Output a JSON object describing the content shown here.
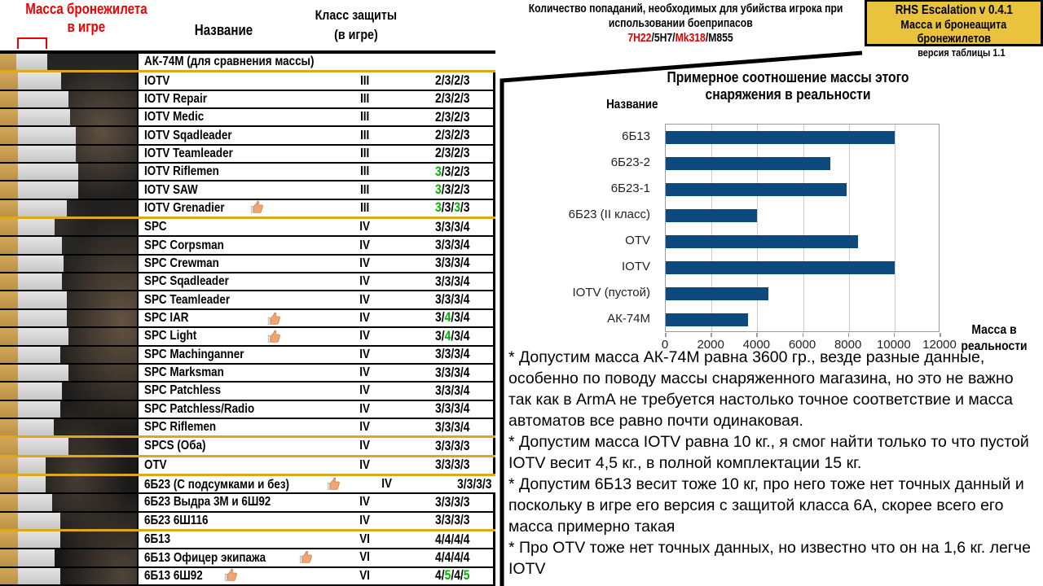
{
  "header": {
    "mass_title_line1": "Масса бронежилета",
    "mass_title_line2": "в игре",
    "name_col": "Название",
    "class_col_line1": "Класс защиты",
    "class_col_line2": "(в игре)",
    "hits_col_line1": "Количество попаданий, необходимых для убийства игрока при",
    "hits_col_line2": "использовании боеприпасов",
    "ammo": [
      {
        "text": "7Н22",
        "color": "#e00000"
      },
      {
        "text": "/5Н7/",
        "color": "#000000"
      },
      {
        "text": "Mk318",
        "color": "#e00000"
      },
      {
        "text": "/М855",
        "color": "#000000"
      }
    ]
  },
  "infobox": {
    "line1": "RHS Escalation v 0.4.1",
    "line2": "Масса и бронеащита",
    "line3": "бронежилетов",
    "version": "версия таблицы 1.1"
  },
  "colors": {
    "accent_red": "#ee0000",
    "green_value": "#00b400",
    "gold_bar": "#c79b4f",
    "gray_bar": "#d4d4d4",
    "group_separator": "#dfa71e",
    "infobox_fill": "#e9c33c",
    "chart_bar": "#0c4a7e"
  },
  "table": {
    "rows": [
      {
        "name": "АК-74М (для сравнения массы)",
        "cls": "",
        "hits": [],
        "green": [],
        "thumb": null,
        "gold": 20,
        "gray": 38,
        "sep": true
      },
      {
        "name": "IOTV",
        "cls": "III",
        "hits": [
          "2",
          "3",
          "2",
          "3"
        ],
        "green": [],
        "thumb": null,
        "gold": 22,
        "gray": 53,
        "sep": false
      },
      {
        "name": "IOTV Repair",
        "cls": "III",
        "hits": [
          "2",
          "3",
          "2",
          "3"
        ],
        "green": [],
        "thumb": null,
        "gold": 22,
        "gray": 62,
        "sep": false
      },
      {
        "name": "IOTV Medic",
        "cls": "III",
        "hits": [
          "2",
          "3",
          "2",
          "3"
        ],
        "green": [],
        "thumb": null,
        "gold": 22,
        "gray": 64,
        "sep": false
      },
      {
        "name": "IOTV Sqadleader",
        "cls": "III",
        "hits": [
          "2",
          "3",
          "2",
          "3"
        ],
        "green": [],
        "thumb": null,
        "gold": 22,
        "gray": 71,
        "sep": false
      },
      {
        "name": "IOTV Teamleader",
        "cls": "III",
        "hits": [
          "2",
          "3",
          "2",
          "3"
        ],
        "green": [],
        "thumb": null,
        "gold": 22,
        "gray": 71,
        "sep": false
      },
      {
        "name": "IOTV Riflemen",
        "cls": "III",
        "hits": [
          "3",
          "3",
          "2",
          "3"
        ],
        "green": [
          0
        ],
        "thumb": null,
        "gold": 22,
        "gray": 74,
        "sep": false
      },
      {
        "name": "IOTV SAW",
        "cls": "III",
        "hits": [
          "3",
          "3",
          "2",
          "3"
        ],
        "green": [
          0
        ],
        "thumb": null,
        "gold": 22,
        "gray": 74,
        "sep": false
      },
      {
        "name": "IOTV Grenadier",
        "cls": "III",
        "hits": [
          "3",
          "3",
          "3",
          "3"
        ],
        "green": [
          0,
          2
        ],
        "thumb": "near",
        "gold": 22,
        "gray": 60,
        "sep": true
      },
      {
        "name": "SPC",
        "cls": "IV",
        "hits": [
          "3",
          "3",
          "3",
          "4"
        ],
        "green": [],
        "thumb": null,
        "gold": 22,
        "gray": 45,
        "sep": false
      },
      {
        "name": "SPC Corpsman",
        "cls": "IV",
        "hits": [
          "3",
          "3",
          "3",
          "4"
        ],
        "green": [],
        "thumb": null,
        "gold": 22,
        "gray": 54,
        "sep": false
      },
      {
        "name": "SPC Crewman",
        "cls": "IV",
        "hits": [
          "3",
          "3",
          "3",
          "4"
        ],
        "green": [],
        "thumb": null,
        "gold": 22,
        "gray": 56,
        "sep": false
      },
      {
        "name": "SPC Sqadleader",
        "cls": "IV",
        "hits": [
          "3",
          "3",
          "3",
          "4"
        ],
        "green": [],
        "thumb": null,
        "gold": 22,
        "gray": 54,
        "sep": false
      },
      {
        "name": "SPC Teamleader",
        "cls": "IV",
        "hits": [
          "3",
          "3",
          "3",
          "4"
        ],
        "green": [],
        "thumb": null,
        "gold": 22,
        "gray": 60,
        "sep": false
      },
      {
        "name": "SPC IAR",
        "cls": "IV",
        "hits": [
          "3",
          "4",
          "3",
          "4"
        ],
        "green": [
          1
        ],
        "thumb": "far",
        "gold": 22,
        "gray": 60,
        "sep": false
      },
      {
        "name": "SPC Light",
        "cls": "IV",
        "hits": [
          "3",
          "4",
          "3",
          "4"
        ],
        "green": [
          1
        ],
        "thumb": "far",
        "gold": 22,
        "gray": 62,
        "sep": false
      },
      {
        "name": "SPC Machinganner",
        "cls": "IV",
        "hits": [
          "3",
          "3",
          "3",
          "4"
        ],
        "green": [],
        "thumb": null,
        "gold": 22,
        "gray": 52,
        "sep": false
      },
      {
        "name": "SPC Marksman",
        "cls": "IV",
        "hits": [
          "3",
          "3",
          "3",
          "4"
        ],
        "green": [],
        "thumb": null,
        "gold": 22,
        "gray": 62,
        "sep": false
      },
      {
        "name": "SPC Patchless",
        "cls": "IV",
        "hits": [
          "3",
          "3",
          "3",
          "4"
        ],
        "green": [],
        "thumb": null,
        "gold": 22,
        "gray": 54,
        "sep": false
      },
      {
        "name": "SPC Patchless/Radio",
        "cls": "IV",
        "hits": [
          "3",
          "3",
          "3",
          "4"
        ],
        "green": [],
        "thumb": null,
        "gold": 22,
        "gray": 52,
        "sep": false
      },
      {
        "name": "SPC Riflemen",
        "cls": "IV",
        "hits": [
          "3",
          "3",
          "3",
          "4"
        ],
        "green": [],
        "thumb": null,
        "gold": 22,
        "gray": 44,
        "sep": true
      },
      {
        "name": "SPCS (Оба)",
        "cls": "IV",
        "hits": [
          "3",
          "3",
          "3",
          "3"
        ],
        "green": [],
        "thumb": null,
        "gold": 22,
        "gray": 62,
        "sep": true
      },
      {
        "name": "OTV",
        "cls": "IV",
        "hits": [
          "3",
          "3",
          "3",
          "3"
        ],
        "green": [],
        "thumb": null,
        "gold": 22,
        "gray": 34,
        "sep": true
      },
      {
        "name": "6Б23 (С подсумками и без)",
        "cls": "IV",
        "hits": [
          "3",
          "3",
          "3",
          "3"
        ],
        "green": [],
        "thumb": "near",
        "gold": 22,
        "gray": 34,
        "sep": false
      },
      {
        "name": "6Б23 Выдра 3М и 6Ш92",
        "cls": "IV",
        "hits": [
          "3",
          "3",
          "3",
          "3"
        ],
        "green": [],
        "thumb": null,
        "gold": 22,
        "gray": 42,
        "sep": false
      },
      {
        "name": "6Б23 6Ш116",
        "cls": "IV",
        "hits": [
          "3",
          "3",
          "3",
          "3"
        ],
        "green": [],
        "thumb": null,
        "gold": 22,
        "gray": 52,
        "sep": true
      },
      {
        "name": "6Б13",
        "cls": "VI",
        "hits": [
          "4",
          "4",
          "4",
          "4"
        ],
        "green": [],
        "thumb": null,
        "gold": 22,
        "gray": 52,
        "sep": false
      },
      {
        "name": "6Б13 Офицер экипажа",
        "cls": "VI",
        "hits": [
          "4",
          "4",
          "4",
          "4"
        ],
        "green": [],
        "thumb": "near",
        "gold": 22,
        "gray": 45,
        "sep": false
      },
      {
        "name": "6Б13 6Ш92",
        "cls": "VI",
        "hits": [
          "4",
          "5",
          "4",
          "5"
        ],
        "green": [
          1,
          3
        ],
        "thumb": "near",
        "gold": 22,
        "gray": 52,
        "sep": false
      }
    ]
  },
  "chart_data": {
    "type": "bar",
    "orientation": "horizontal",
    "title": "Примерное соотношение массы этого снаряжения в реальности",
    "categories_label": "Название",
    "categories": [
      "6Б13",
      "6Б23-2",
      "6Б23-1",
      "6Б23 (II класс)",
      "OTV",
      "IOTV",
      "IOTV (пустой)",
      "АК-74М"
    ],
    "values": [
      10000,
      7200,
      7900,
      4000,
      8400,
      10000,
      4500,
      3600
    ],
    "xlabel": "Масса в реальности",
    "xlim": [
      0,
      12000
    ],
    "xticks": [
      0,
      2000,
      4000,
      6000,
      8000,
      10000,
      12000
    ],
    "grid": true,
    "legend": false
  },
  "notes": [
    "* Допустим масса АК-74М равна 3600 гр., везде разные данные, особенно по поводу массы снаряженного магазина, но это не важно так как в ArmA не требуется настолько точное соответствие и масса автоматов все равно почти одинаковая.",
    "* Допустим масса IOTV равна 10 кг., я смог найти только то что пустой IOTV весит 4,5 кг., в полной комплектации 15 кг.",
    "* Допустим 6Б13 весит тоже 10 кг, про него тоже нет точных данный и поскольку в игре его версия с защитой класса 6А, скорее всего его масса примерно такая",
    "* Про OTV тоже нет точных данных, но известно что он на 1,6 кг. легче IOTV"
  ]
}
